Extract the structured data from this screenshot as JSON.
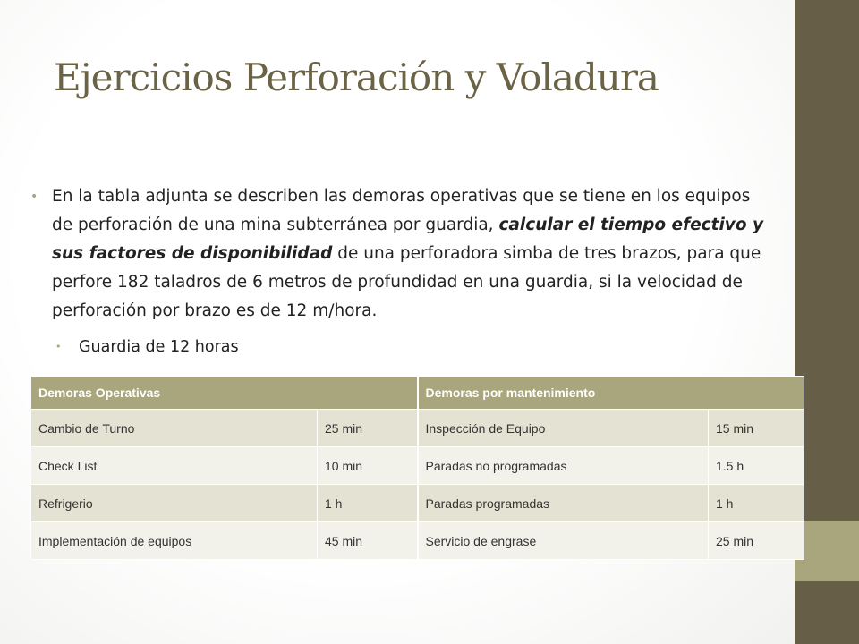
{
  "slide": {
    "title": "Ejercicios Perforación y Voladura",
    "bullet1": {
      "text_before": "En la tabla adjunta se describen las demoras operativas que se tiene en los equipos de perforación de una mina subterránea por guardia, ",
      "text_emphasis": "calcular el tiempo efectivo y sus factores de disponibilidad",
      "text_after": " de una perforadora simba de tres brazos, para que perfore 182 taladros de 6 metros de profundidad en una guardia, si la velocidad de perforación por brazo es de 12 m/hora."
    },
    "bullet2": "Guardia de 12 horas"
  },
  "table": {
    "headers": [
      "Demoras Operativas",
      "Demoras por  mantenimiento"
    ],
    "rows": [
      [
        "Cambio de Turno",
        "25 min",
        "Inspección de Equipo",
        "15 min"
      ],
      [
        "Check List",
        "10 min",
        "Paradas no programadas",
        "1.5  h"
      ],
      [
        "Refrigerio",
        "1 h",
        "Paradas programadas",
        "1 h"
      ],
      [
        "Implementación de equipos",
        "45 min",
        "Servicio de engrase",
        "25 min"
      ]
    ]
  },
  "colors": {
    "title": "#6b6345",
    "side_band_dark": "#675e48",
    "side_band_light": "#a9a57c",
    "table_header": "#a9a57c",
    "table_row_odd": "#e4e2d3",
    "table_row_even": "#f2f1ea"
  }
}
